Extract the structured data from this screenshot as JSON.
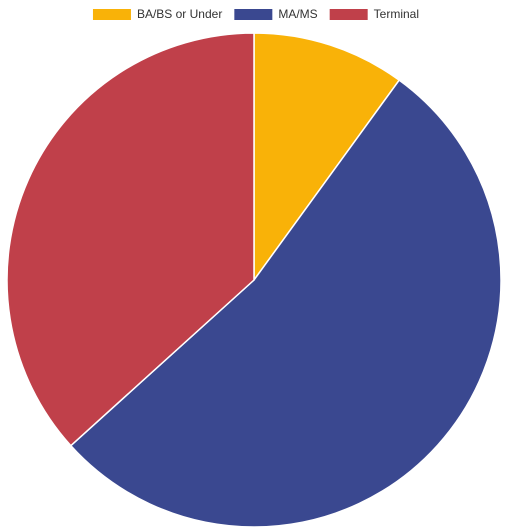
{
  "chart_data": {
    "type": "pie",
    "categories": [
      "BA/BS or Under",
      "MA/MS",
      "Terminal"
    ],
    "values": [
      10,
      53.3,
      36.7
    ],
    "colors": [
      "#f9b208",
      "#3a4890",
      "#c0404a"
    ],
    "legend": "top"
  }
}
